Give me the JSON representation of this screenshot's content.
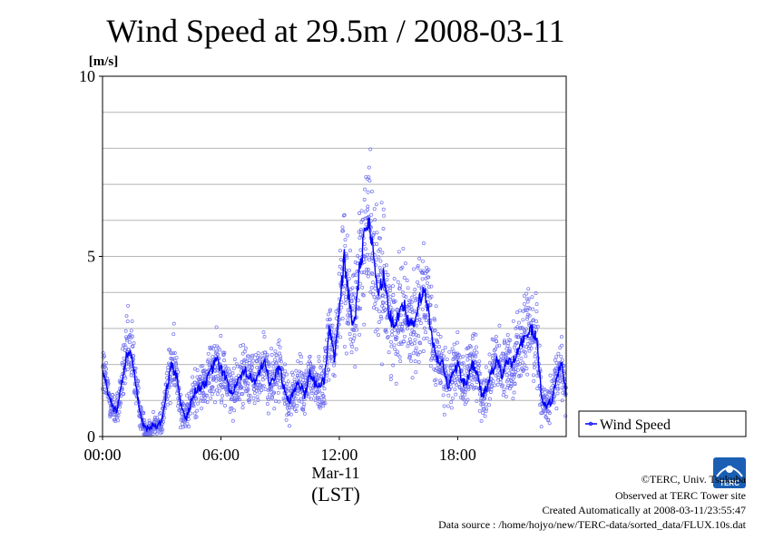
{
  "chart_data": {
    "type": "scatter",
    "title": "Wind Speed at 29.5m / 2008-03-11",
    "ylabel": "[m/s]",
    "ylim": [
      0,
      10
    ],
    "y_ticks": [
      "0",
      "5",
      "10"
    ],
    "y_gridlines": [
      1,
      2,
      3,
      4,
      5,
      6,
      7,
      8,
      9
    ],
    "xlim_hours": [
      0,
      23.5
    ],
    "x_ticks": [
      {
        "hour": 0,
        "label": "00:00"
      },
      {
        "hour": 6,
        "label": "06:00"
      },
      {
        "hour": 12,
        "label": "12:00"
      },
      {
        "hour": 18,
        "label": "18:00"
      }
    ],
    "x_date_label": "Mar-11",
    "x_timezone_label": "(LST)",
    "grid": true,
    "legend_position": "right",
    "series": [
      {
        "name": "Wind Speed",
        "color": "#0000ff",
        "scatter_color": "#6f6ff0",
        "x_hours": [
          0.0,
          0.25,
          0.5,
          0.75,
          1.0,
          1.25,
          1.5,
          1.75,
          2.0,
          2.25,
          2.5,
          2.75,
          3.0,
          3.25,
          3.5,
          3.75,
          4.0,
          4.25,
          4.5,
          4.75,
          5.0,
          5.25,
          5.5,
          5.75,
          6.0,
          6.25,
          6.5,
          6.75,
          7.0,
          7.25,
          7.5,
          7.75,
          8.0,
          8.25,
          8.5,
          8.75,
          9.0,
          9.25,
          9.5,
          9.75,
          10.0,
          10.25,
          10.5,
          10.75,
          11.0,
          11.25,
          11.5,
          11.75,
          12.0,
          12.25,
          12.5,
          12.75,
          13.0,
          13.25,
          13.5,
          13.75,
          14.0,
          14.25,
          14.5,
          14.75,
          15.0,
          15.25,
          15.5,
          15.75,
          16.0,
          16.25,
          16.5,
          16.75,
          17.0,
          17.25,
          17.5,
          17.75,
          18.0,
          18.25,
          18.5,
          18.75,
          19.0,
          19.25,
          19.5,
          19.75,
          20.0,
          20.25,
          20.5,
          20.75,
          21.0,
          21.25,
          21.5,
          21.75,
          22.0,
          22.25,
          22.5,
          22.75,
          23.0,
          23.25,
          23.5
        ],
        "values": [
          1.9,
          1.3,
          0.8,
          0.7,
          1.6,
          2.3,
          2.3,
          1.2,
          0.4,
          0.2,
          0.3,
          0.3,
          0.4,
          1.3,
          2.0,
          1.7,
          0.8,
          0.5,
          1.0,
          1.3,
          1.4,
          1.5,
          1.8,
          2.1,
          1.9,
          1.6,
          1.2,
          1.4,
          1.6,
          1.8,
          1.7,
          1.5,
          1.8,
          2.0,
          1.4,
          1.7,
          1.9,
          1.2,
          1.0,
          1.3,
          1.5,
          1.1,
          1.8,
          1.5,
          1.4,
          1.6,
          3.0,
          2.2,
          3.5,
          5.0,
          3.8,
          3.0,
          4.5,
          5.5,
          6.0,
          5.1,
          3.9,
          4.5,
          3.4,
          3.1,
          3.4,
          3.7,
          3.2,
          3.0,
          3.6,
          4.1,
          3.5,
          2.5,
          2.1,
          2.0,
          1.4,
          1.7,
          2.0,
          1.5,
          1.6,
          2.0,
          1.7,
          1.1,
          1.4,
          1.8,
          2.1,
          1.7,
          2.1,
          2.0,
          2.4,
          2.6,
          2.8,
          3.0,
          2.7,
          1.1,
          0.8,
          1.0,
          1.5,
          2.1,
          1.1
        ]
      }
    ]
  },
  "credits": {
    "copyright": "©TERC, Univ. Tsukuba",
    "observed": "Observed at TERC Tower site",
    "created": "Created Automatically at 2008-03-11/23:55:47",
    "source": "Data source : /home/hojyo/new/TERC-data/sorted_data/FLUX.10s.dat"
  },
  "logo": {
    "text": "TERC",
    "color": "#1a5fb4"
  }
}
